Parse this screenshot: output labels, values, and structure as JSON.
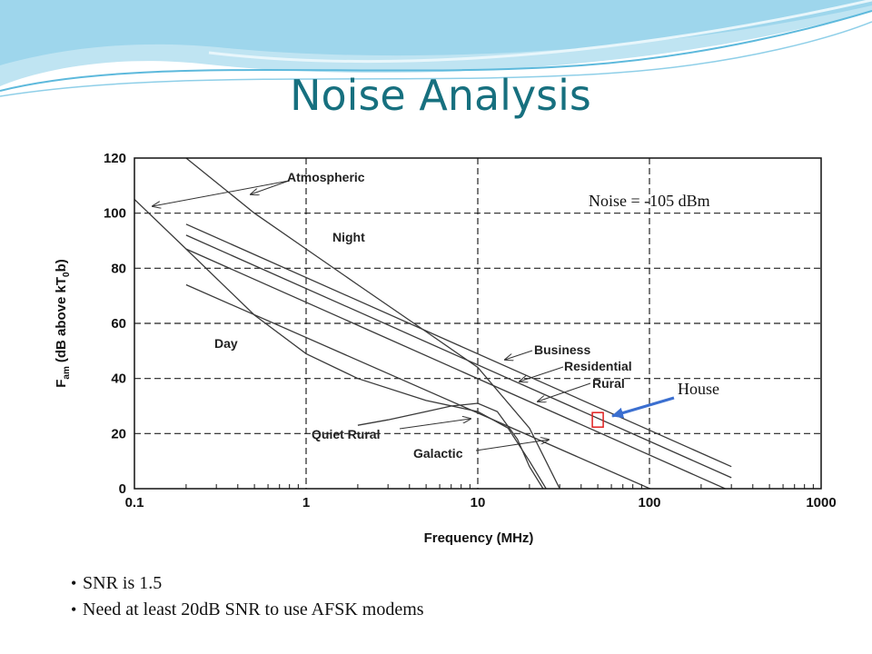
{
  "slide": {
    "title": "Noise Analysis",
    "bullets": [
      "SNR is 1.5",
      "Need at least 20dB SNR to use AFSK modems"
    ]
  },
  "chart_data": {
    "type": "line",
    "x_scale": "log",
    "xlim": [
      0.1,
      1000
    ],
    "ylim": [
      0,
      120
    ],
    "x_ticks": [
      "0.1",
      "1",
      "10",
      "100",
      "1000"
    ],
    "y_ticks": [
      "0",
      "20",
      "40",
      "60",
      "80",
      "100",
      "120"
    ],
    "xlabel": "Frequency (MHz)",
    "ylabel": "F",
    "ylabel_sub": "am",
    "ylabel_paren": "(dB above kT",
    "ylabel_paren_sub": "0",
    "ylabel_paren_end": "b)",
    "grid": true,
    "series": [
      {
        "name": "Atmospheric Night",
        "x": [
          0.2,
          0.5,
          1,
          2,
          5,
          10,
          20,
          30
        ],
        "y": [
          120,
          100,
          87,
          74,
          57,
          44,
          22,
          0
        ]
      },
      {
        "name": "Atmospheric Day",
        "x": [
          0.1,
          0.2,
          0.5,
          1,
          2,
          5,
          10,
          15,
          20,
          25
        ],
        "y": [
          105,
          87,
          63,
          49,
          40,
          32,
          28,
          22,
          10,
          0
        ]
      },
      {
        "name": "Business",
        "x": [
          0.2,
          300
        ],
        "y": [
          96,
          8
        ]
      },
      {
        "name": "Residential",
        "x": [
          0.2,
          300
        ],
        "y": [
          92,
          4
        ]
      },
      {
        "name": "Rural",
        "x": [
          0.2,
          300
        ],
        "y": [
          87,
          -1
        ]
      },
      {
        "name": "Quiet Rural",
        "x": [
          0.2,
          300
        ],
        "y": [
          74,
          -13
        ]
      },
      {
        "name": "Galactic",
        "x": [
          2,
          3,
          5,
          7,
          10,
          13,
          17,
          20,
          24
        ],
        "y": [
          23,
          25,
          28,
          30,
          31,
          28,
          18,
          8,
          0
        ]
      }
    ],
    "curve_labels": [
      "Atmospheric",
      "Night",
      "Day",
      "Business",
      "Residential",
      "Rural",
      "Quiet Rural",
      "Galactic"
    ],
    "annotations": {
      "noise": "Noise = -105 dBm",
      "house": "House",
      "house_marker": {
        "x": 50,
        "y": 25
      }
    }
  },
  "colors": {
    "title": "#17707f",
    "arrow": "#3b6fd0",
    "marker": "#e02020"
  }
}
